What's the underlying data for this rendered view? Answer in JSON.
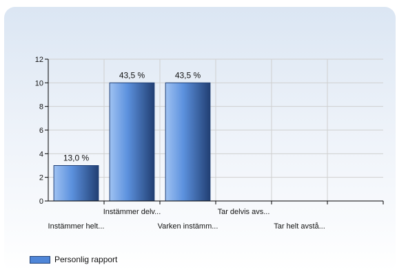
{
  "chart_data": {
    "type": "bar",
    "categories": [
      "Instämmer helt...",
      "Instämmer delv...",
      "Varken instämm...",
      "Tar delvis avs...",
      "Tar helt avstå..."
    ],
    "series": [
      {
        "name": "Personlig rapport",
        "values": [
          3,
          10,
          10,
          0,
          0
        ],
        "labels": [
          "13,0 %",
          "43,5 %",
          "43,5 %",
          "",
          ""
        ]
      }
    ],
    "ylim": [
      0,
      12
    ],
    "yticks": [
      0,
      2,
      4,
      6,
      8,
      10,
      12
    ],
    "grid": true,
    "legend_position": "bottom-left",
    "colors": {
      "bar_light": "#a8c8f4",
      "bar_mid": "#4f86d8",
      "bar_dark": "#1f3f75",
      "grid": "#cfcfcf",
      "axis": "#000000"
    }
  },
  "legend": {
    "label": "Personlig rapport"
  }
}
